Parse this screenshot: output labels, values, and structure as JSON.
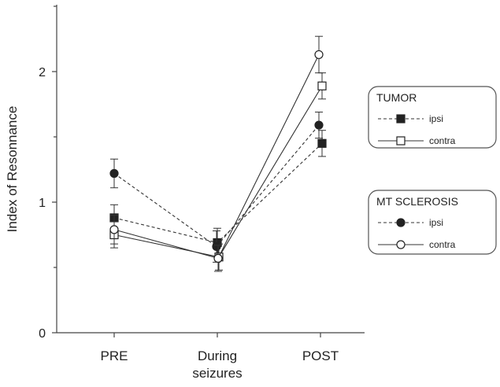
{
  "chart_data": {
    "type": "line",
    "categories": [
      "PRE",
      "During seizures",
      "POST"
    ],
    "category_lines": [
      [
        "PRE"
      ],
      [
        "During",
        "seizures"
      ],
      [
        "POST"
      ]
    ],
    "ylabel": "Index of Resonnance",
    "ylim": [
      0,
      2.5
    ],
    "yticks": [
      0,
      1,
      2
    ],
    "grid": false,
    "legend_placement": "right",
    "groups": [
      {
        "title": "TUMOR",
        "series": [
          0,
          1
        ]
      },
      {
        "title": "MT SCLEROSIS",
        "series": [
          2,
          3
        ]
      }
    ],
    "series": [
      {
        "name": "ipsi",
        "group": "TUMOR",
        "marker": "square-filled",
        "line": "dashed",
        "values": [
          0.88,
          0.69,
          1.45
        ],
        "errors": [
          0.1,
          0.11,
          0.1
        ]
      },
      {
        "name": "contra",
        "group": "TUMOR",
        "marker": "square-open",
        "line": "solid",
        "values": [
          0.75,
          0.58,
          1.89
        ],
        "errors": [
          0.1,
          0.1,
          0.1
        ]
      },
      {
        "name": "ipsi",
        "group": "MT SCLEROSIS",
        "marker": "circle-filled",
        "line": "dashed",
        "values": [
          1.22,
          0.66,
          1.59
        ],
        "errors": [
          0.11,
          0.12,
          0.1
        ]
      },
      {
        "name": "contra",
        "group": "MT SCLEROSIS",
        "marker": "circle-open",
        "line": "solid",
        "values": [
          0.79,
          0.57,
          2.13
        ],
        "errors": [
          0.11,
          0.1,
          0.14
        ]
      }
    ]
  }
}
